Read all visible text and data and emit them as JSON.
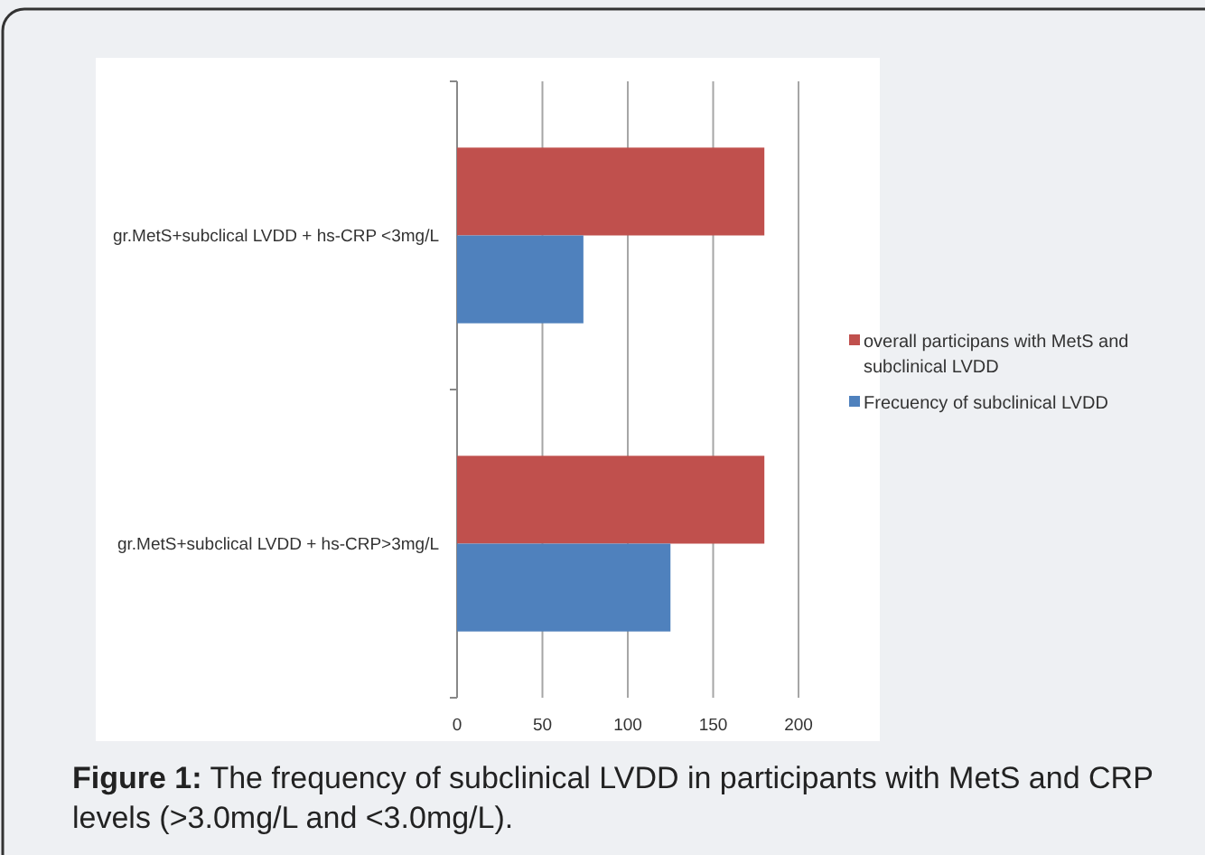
{
  "chart_data": {
    "type": "bar",
    "orientation": "horizontal",
    "categories": [
      "gr.MetS+subclical LVDD + hs-CRP <3mg/L",
      "gr.MetS+subclical LVDD + hs-CRP>3mg/L"
    ],
    "series": [
      {
        "name": "overall participans with MetS and subclinical LVDD",
        "color": "#c0504d",
        "values": [
          180,
          180
        ]
      },
      {
        "name": "Frecuency of  subclinical LVDD",
        "color": "#4f81bd",
        "values": [
          74,
          125
        ]
      }
    ],
    "xlim": [
      0,
      200
    ],
    "xticks": [
      0,
      50,
      100,
      150,
      200
    ],
    "grid": "x",
    "legend": "right",
    "annotations": [
      "Figure 1: The frequency of subclinical LVDD in participants with MetS and CRP levels (>3.0mg/L and <3.0mg/L)."
    ]
  }
}
